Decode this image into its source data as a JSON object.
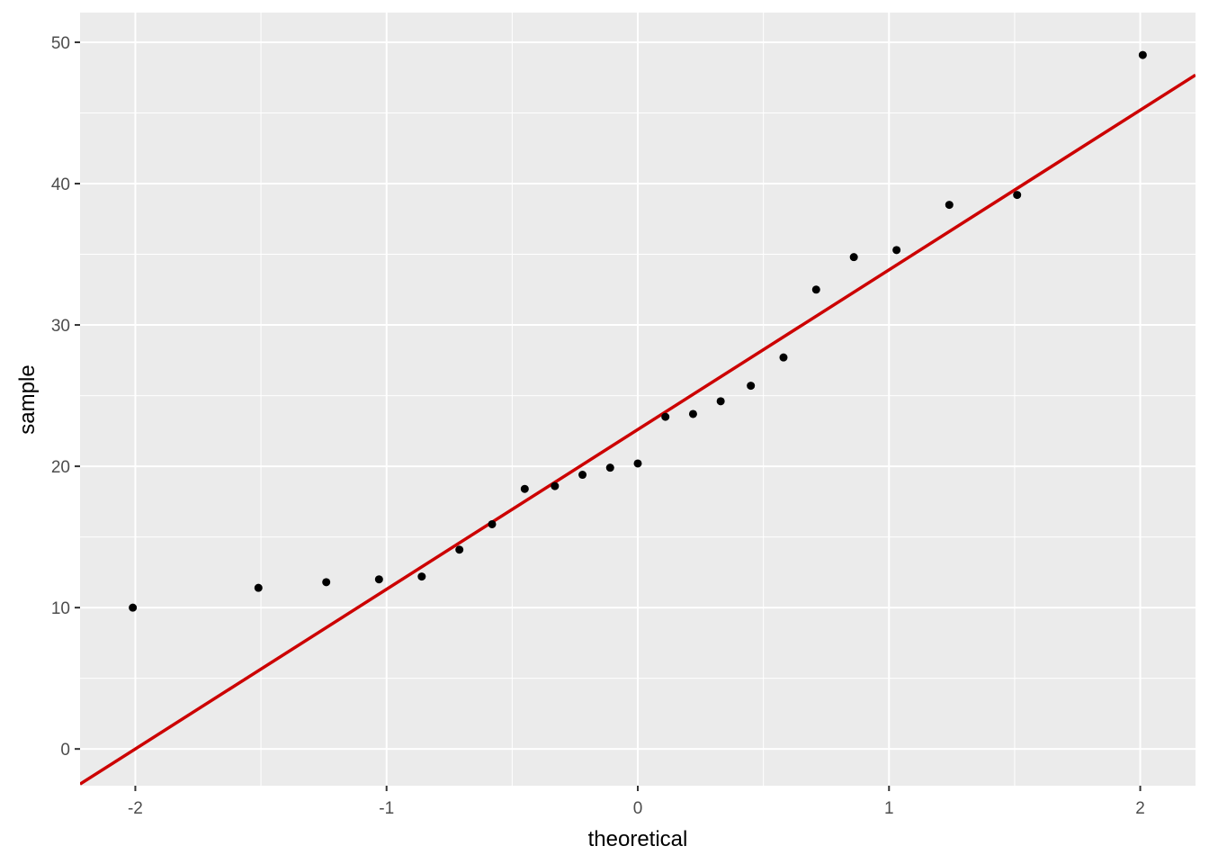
{
  "chart_data": {
    "type": "scatter",
    "title": "",
    "xlabel": "theoretical",
    "ylabel": "sample",
    "xlim": [
      -2.22,
      2.22
    ],
    "ylim": [
      -2.6,
      52.1
    ],
    "x_ticks": [
      -2,
      -1,
      0,
      1,
      2
    ],
    "x_tick_labels": [
      "-2",
      "-1",
      "0",
      "1",
      "2"
    ],
    "y_ticks": [
      0,
      10,
      20,
      30,
      40,
      50
    ],
    "y_tick_labels": [
      "0",
      "10",
      "20",
      "30",
      "40",
      "50"
    ],
    "grid": true,
    "colors": {
      "panel": "#ebebeb",
      "grid": "#ffffff",
      "points": "#000000",
      "line": "#cc0000"
    },
    "points": {
      "x": [
        -2.01,
        -1.51,
        -1.24,
        -1.03,
        -0.86,
        -0.71,
        -0.58,
        -0.45,
        -0.33,
        -0.22,
        -0.11,
        0.0,
        0.11,
        0.22,
        0.33,
        0.45,
        0.58,
        0.71,
        0.86,
        1.03,
        1.24,
        1.51,
        2.01
      ],
      "y": [
        10.0,
        11.4,
        11.8,
        12.0,
        12.2,
        14.1,
        15.9,
        18.4,
        18.6,
        19.4,
        19.9,
        20.2,
        23.5,
        23.7,
        24.6,
        25.7,
        27.7,
        32.5,
        34.8,
        35.3,
        38.5,
        39.2,
        49.1
      ]
    },
    "reference_line": {
      "intercept": 22.6,
      "slope": 11.3
    }
  }
}
